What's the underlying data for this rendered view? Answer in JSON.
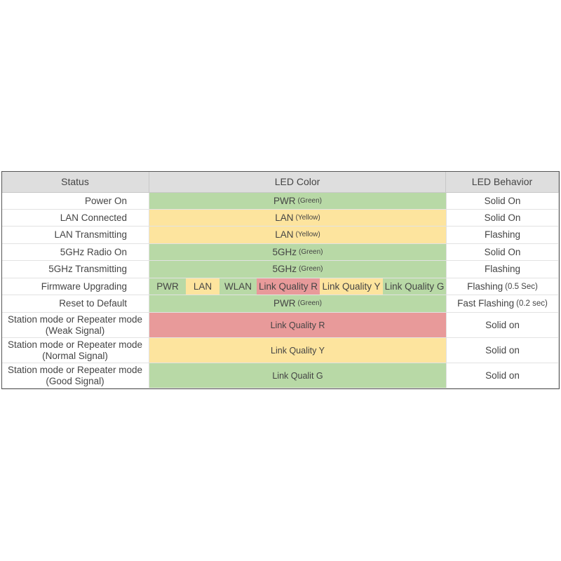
{
  "table": {
    "header": [
      "Status",
      "LED Color",
      "LED Behavior"
    ],
    "rows": [
      {
        "status": [
          "Power On"
        ],
        "led": [
          {
            "text": "PWR",
            "note": "(Green)",
            "color": "#b8d9a6"
          }
        ],
        "behavior": {
          "text": "Solid On"
        }
      },
      {
        "status": [
          "LAN Connected"
        ],
        "led": [
          {
            "text": "LAN",
            "note": "(Yellow)",
            "color": "#fde49e"
          }
        ],
        "behavior": {
          "text": "Solid On"
        }
      },
      {
        "status": [
          "LAN Transmitting"
        ],
        "led": [
          {
            "text": "LAN",
            "note": "(Yellow)",
            "color": "#fde49e"
          }
        ],
        "behavior": {
          "text": "Flashing"
        }
      },
      {
        "status": [
          "5GHz Radio On"
        ],
        "led": [
          {
            "text": "5GHz",
            "note": "(Green)",
            "color": "#b8d9a6"
          }
        ],
        "behavior": {
          "text": "Solid On"
        }
      },
      {
        "status": [
          "5GHz Transmitting"
        ],
        "led": [
          {
            "text": "5GHz",
            "note": "(Green)",
            "color": "#b8d9a6"
          }
        ],
        "behavior": {
          "text": "Flashing"
        }
      },
      {
        "status": [
          "Firmware Upgrading"
        ],
        "led": [
          {
            "text": "PWR",
            "color": "#b8d9a6"
          },
          {
            "text": "LAN",
            "color": "#fde49e"
          },
          {
            "text": "WLAN",
            "color": "#b8d9a6"
          },
          {
            "text": "Link Quality R",
            "color": "#e89a9a"
          },
          {
            "text": "Link Quality Y",
            "color": "#fde49e"
          },
          {
            "text": "Link Quality G",
            "color": "#b8d9a6"
          }
        ],
        "behavior": {
          "text": "Flashing",
          "note": "(0.5 Sec)"
        }
      },
      {
        "status": [
          "Reset to Default"
        ],
        "led": [
          {
            "text": "PWR",
            "note": "(Green)",
            "color": "#b8d9a6"
          }
        ],
        "behavior": {
          "text": "Fast Flashing",
          "note": "(0.2 sec)"
        }
      },
      {
        "status": [
          "Station mode or Repeater mode",
          "(Weak Signal)"
        ],
        "led": [
          {
            "text": "Link Quality R",
            "color": "#e89a9a"
          }
        ],
        "behavior": {
          "text": "Solid on"
        }
      },
      {
        "status": [
          "Station mode or Repeater mode",
          "(Normal Signal)"
        ],
        "led": [
          {
            "text": "Link Quality Y",
            "color": "#fde49e"
          }
        ],
        "behavior": {
          "text": "Solid on"
        }
      },
      {
        "status": [
          "Station mode or Repeater mode",
          "(Good Signal)"
        ],
        "led": [
          {
            "text": "Link Qualit G",
            "color": "#b8d9a6"
          }
        ],
        "behavior": {
          "text": "Solid on"
        }
      }
    ]
  }
}
